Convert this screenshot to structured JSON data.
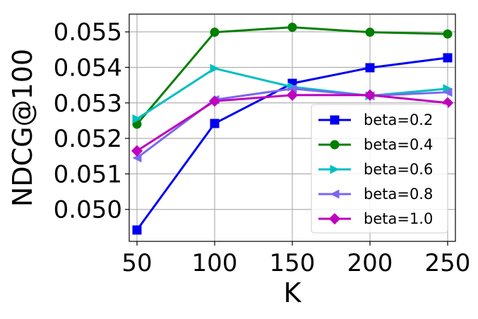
{
  "chart_data": {
    "type": "line",
    "title": "",
    "xlabel": "K",
    "ylabel": "NDCG@100",
    "x": [
      50,
      100,
      150,
      200,
      250
    ],
    "xticks": [
      "50",
      "100",
      "150",
      "200",
      "250"
    ],
    "yticks": [
      "0.050",
      "0.051",
      "0.052",
      "0.053",
      "0.054",
      "0.055"
    ],
    "xlim": [
      45,
      255
    ],
    "ylim": [
      0.0491,
      0.0555
    ],
    "grid": true,
    "legend_position": "lower-right",
    "series": [
      {
        "name": "beta=0.2",
        "color": "#0000ee",
        "marker": "square",
        "values": [
          0.04942,
          0.05242,
          0.05355,
          0.05399,
          0.05427
        ]
      },
      {
        "name": "beta=0.4",
        "color": "#007f00",
        "marker": "circle",
        "values": [
          0.0524,
          0.05499,
          0.05513,
          0.05499,
          0.05494
        ]
      },
      {
        "name": "beta=0.6",
        "color": "#00bfbf",
        "marker": "triangle-right",
        "values": [
          0.05255,
          0.05397,
          0.05345,
          0.0532,
          0.0534
        ]
      },
      {
        "name": "beta=0.8",
        "color": "#7b68ee",
        "marker": "triangle-left",
        "values": [
          0.05145,
          0.05309,
          0.0534,
          0.0532,
          0.0533
        ]
      },
      {
        "name": "beta=1.0",
        "color": "#bf00bf",
        "marker": "diamond",
        "values": [
          0.05165,
          0.05305,
          0.05322,
          0.05322,
          0.053
        ]
      }
    ]
  }
}
